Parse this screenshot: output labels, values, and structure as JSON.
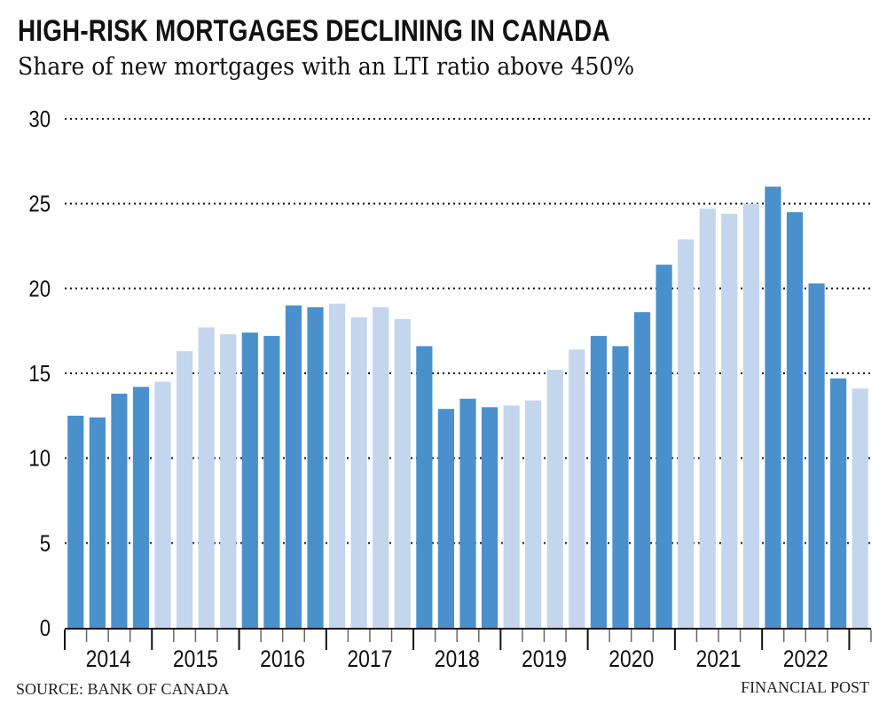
{
  "title": "HIGH-RISK MORTGAGES DECLINING IN CANADA",
  "subtitle": "Share of new mortgages with an LTI ratio above 450%",
  "source": "SOURCE: BANK OF CANADA",
  "credit": "FINANCIAL POST",
  "colors": {
    "dark": "#4a90cc",
    "light": "#c4d5ee"
  },
  "chart_data": {
    "type": "bar",
    "title": "HIGH-RISK MORTGAGES DECLINING IN CANADA",
    "subtitle": "Share of new mortgages with an LTI ratio above 450%",
    "ylim": [
      0,
      30
    ],
    "yticks": [
      0,
      5,
      10,
      15,
      20,
      25,
      30
    ],
    "grid": true,
    "year_labels": [
      "2014",
      "2015",
      "2016",
      "2017",
      "2018",
      "2019",
      "2020",
      "2021",
      "2022"
    ],
    "bars_per_year": 4,
    "values": [
      12.5,
      12.4,
      13.8,
      14.2,
      14.5,
      16.3,
      17.7,
      17.3,
      17.4,
      17.2,
      19.0,
      18.9,
      19.1,
      18.3,
      18.9,
      18.2,
      16.6,
      12.9,
      13.5,
      13.0,
      13.1,
      13.4,
      15.2,
      16.4,
      17.2,
      16.6,
      18.6,
      21.4,
      22.9,
      24.7,
      24.4,
      25.0,
      26.0,
      24.5,
      20.3,
      14.7,
      14.1
    ]
  }
}
